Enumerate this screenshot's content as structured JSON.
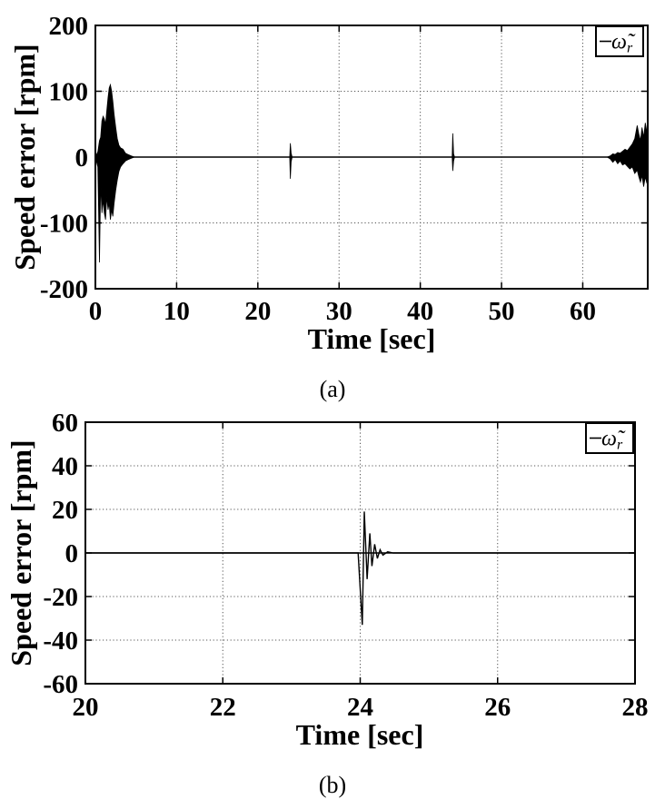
{
  "page": {
    "background": "#ffffff",
    "ink_color": "#000000",
    "grid_color": "#555555"
  },
  "chart_data": [
    {
      "id": "a",
      "type": "line",
      "caption": "(a)",
      "xlabel": "Time [sec]",
      "ylabel": "Speed error [rpm]",
      "xlim": [
        0,
        68
      ],
      "ylim": [
        -200,
        200
      ],
      "xticks": [
        0,
        10,
        20,
        30,
        40,
        50,
        60
      ],
      "yticks": [
        200,
        100,
        0,
        -100,
        -200
      ],
      "grid": true,
      "legend": {
        "position": "top-right",
        "symbol": "ω̃",
        "subscript": "r",
        "line_color": "#000000"
      },
      "series": [
        {
          "name": "speed-error-rpm",
          "color": "#000000",
          "baseline": 0,
          "bursts": [
            {
              "name": "startup-transient",
              "envelope": [
                [
                  0,
                  0,
                  0
                ],
                [
                  0.3,
                  -15,
                  8
                ],
                [
                  0.5,
                  -160,
                  25
                ],
                [
                  0.65,
                  -40,
                  30
                ],
                [
                  0.8,
                  -85,
                  55
                ],
                [
                  0.95,
                  -65,
                  62
                ],
                [
                  1.1,
                  -85,
                  58
                ],
                [
                  1.25,
                  -95,
                  50
                ],
                [
                  1.4,
                  -60,
                  70
                ],
                [
                  1.55,
                  -80,
                  90
                ],
                [
                  1.7,
                  -70,
                  105
                ],
                [
                  1.85,
                  -95,
                  110
                ],
                [
                  2.0,
                  -80,
                  100
                ],
                [
                  2.15,
                  -90,
                  85
                ],
                [
                  2.3,
                  -70,
                  65
                ],
                [
                  2.5,
                  -50,
                  45
                ],
                [
                  2.7,
                  -35,
                  28
                ],
                [
                  2.9,
                  -22,
                  18
                ],
                [
                  3.1,
                  -15,
                  14
                ],
                [
                  3.4,
                  -10,
                  12
                ],
                [
                  3.7,
                  -6,
                  6
                ],
                [
                  4.0,
                  -4,
                  4
                ],
                [
                  4.4,
                  -2,
                  2
                ],
                [
                  4.8,
                  0,
                  0
                ]
              ]
            },
            {
              "name": "disturbance-24s",
              "envelope": [
                [
                  23.92,
                  0,
                  0
                ],
                [
                  24.0,
                  -33,
                  21
                ],
                [
                  24.1,
                  -7,
                  6
                ],
                [
                  24.22,
                  0,
                  0
                ]
              ]
            },
            {
              "name": "disturbance-44s",
              "envelope": [
                [
                  43.92,
                  0,
                  0
                ],
                [
                  44.0,
                  -21,
                  36
                ],
                [
                  44.1,
                  -6,
                  5
                ],
                [
                  44.22,
                  0,
                  0
                ]
              ]
            },
            {
              "name": "end-transient",
              "envelope": [
                [
                  63.0,
                  0,
                  0
                ],
                [
                  63.4,
                  -3,
                  2
                ],
                [
                  63.7,
                  -8,
                  5
                ],
                [
                  64.0,
                  -4,
                  4
                ],
                [
                  64.3,
                  -10,
                  7
                ],
                [
                  64.6,
                  -6,
                  6
                ],
                [
                  64.9,
                  -12,
                  9
                ],
                [
                  65.2,
                  -10,
                  12
                ],
                [
                  65.5,
                  -14,
                  10
                ],
                [
                  65.8,
                  -18,
                  15
                ],
                [
                  66.1,
                  -15,
                  20
                ],
                [
                  66.4,
                  -25,
                  28
                ],
                [
                  66.7,
                  -20,
                  48
                ],
                [
                  66.9,
                  -30,
                  35
                ],
                [
                  67.1,
                  -38,
                  25
                ],
                [
                  67.3,
                  -28,
                  45
                ],
                [
                  67.5,
                  -45,
                  30
                ],
                [
                  67.7,
                  -30,
                  52
                ],
                [
                  67.9,
                  -40,
                  38
                ],
                [
                  68.0,
                  -35,
                  30
                ]
              ]
            }
          ]
        }
      ]
    },
    {
      "id": "b",
      "type": "line",
      "caption": "(b)",
      "xlabel": "Time [sec]",
      "ylabel": "Speed error [rpm]",
      "xlim": [
        20,
        28
      ],
      "ylim": [
        -60,
        60
      ],
      "xticks": [
        20,
        22,
        24,
        26,
        28
      ],
      "yticks": [
        60,
        40,
        20,
        0,
        -20,
        -40,
        -60
      ],
      "grid": true,
      "legend": {
        "position": "top-right",
        "symbol": "ω̃",
        "subscript": "r",
        "line_color": "#000000"
      },
      "series": [
        {
          "name": "speed-error-rpm",
          "color": "#000000",
          "baseline": 0,
          "points": [
            [
              20,
              0
            ],
            [
              23.97,
              0
            ],
            [
              24.03,
              -33
            ],
            [
              24.06,
              19
            ],
            [
              24.1,
              -12
            ],
            [
              24.14,
              9
            ],
            [
              24.17,
              -6
            ],
            [
              24.21,
              4
            ],
            [
              24.25,
              -2.5
            ],
            [
              24.29,
              1.5
            ],
            [
              24.33,
              -1
            ],
            [
              24.4,
              0.5
            ],
            [
              24.48,
              0
            ],
            [
              28,
              0
            ]
          ]
        }
      ]
    }
  ]
}
